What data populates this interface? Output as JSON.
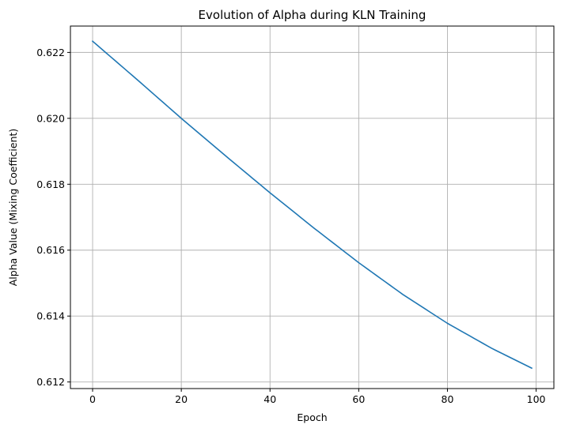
{
  "chart_data": {
    "type": "line",
    "title": "Evolution of Alpha during KLN Training",
    "xlabel": "Epoch",
    "ylabel": "Alpha Value (Mixing Coefficient)",
    "xlim": [
      -5,
      104
    ],
    "ylim": [
      0.6118,
      0.6228
    ],
    "grid": true,
    "xticks": [
      0,
      20,
      40,
      60,
      80,
      100
    ],
    "xtick_labels": [
      "0",
      "20",
      "40",
      "60",
      "80",
      "100"
    ],
    "yticks": [
      0.612,
      0.614,
      0.616,
      0.618,
      0.62,
      0.622
    ],
    "ytick_labels": [
      "0.612",
      "0.614",
      "0.616",
      "0.618",
      "0.620",
      "0.622"
    ],
    "series": [
      {
        "name": "alpha",
        "color": "#1f77b4",
        "x": [
          0,
          10,
          20,
          30,
          40,
          50,
          60,
          70,
          80,
          90,
          99
        ],
        "values": [
          0.62234,
          0.62118,
          0.62,
          0.61886,
          0.61774,
          0.61666,
          0.61562,
          0.61465,
          0.61378,
          0.61302,
          0.61242
        ]
      }
    ]
  }
}
